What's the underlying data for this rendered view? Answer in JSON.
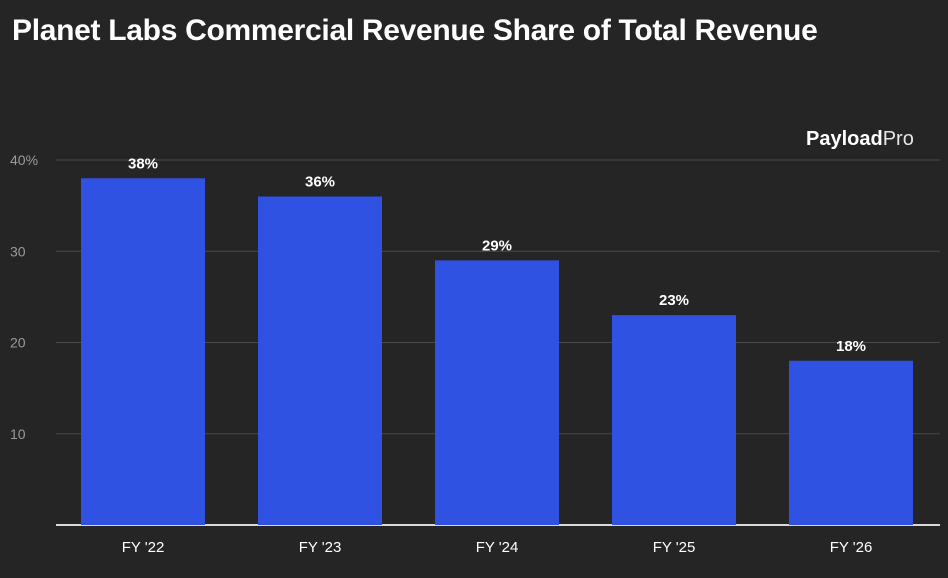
{
  "title": "Planet Labs Commercial Revenue Share of Total Revenue",
  "logo": {
    "bold_part": "Payload",
    "light_part": "Pro"
  },
  "colors": {
    "background": "#252526",
    "bar": "#3052e3",
    "text": "#ffffff",
    "axis_text": "#9a9a9a"
  },
  "chart_data": {
    "type": "bar",
    "title": "Planet Labs Commercial Revenue Share of Total Revenue",
    "categories": [
      "FY '22",
      "FY '23",
      "FY '24",
      "FY '25",
      "FY '26"
    ],
    "values": [
      38,
      36,
      29,
      23,
      18
    ],
    "data_labels": [
      "38%",
      "36%",
      "29%",
      "23%",
      "18%"
    ],
    "xlabel": "",
    "ylabel": "",
    "ylim": [
      0,
      40
    ],
    "yticks": [
      10,
      20,
      30,
      40
    ],
    "ytick_labels": [
      "10",
      "20",
      "30",
      "40%"
    ],
    "grid": true,
    "legend": "none"
  }
}
